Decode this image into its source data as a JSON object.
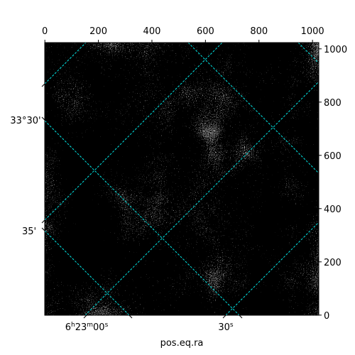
{
  "chart_data": {
    "type": "image",
    "xlabel": "pos.eq.ra",
    "xlim": [
      -0.5,
      1023.5
    ],
    "ylim": [
      -0.5,
      1023.5
    ],
    "xticks": [
      0,
      200,
      400,
      600,
      800,
      1000
    ],
    "yticks": [
      0,
      200,
      400,
      600,
      800,
      1000
    ],
    "ra_ticks": [
      {
        "parts": [
          "6",
          "h",
          "23",
          "m",
          "00",
          "s"
        ]
      },
      {
        "parts": [
          "30",
          "s"
        ]
      }
    ],
    "dec_ticks": [
      "33°30'",
      "35'"
    ],
    "grid_color": "#00e5e5"
  }
}
